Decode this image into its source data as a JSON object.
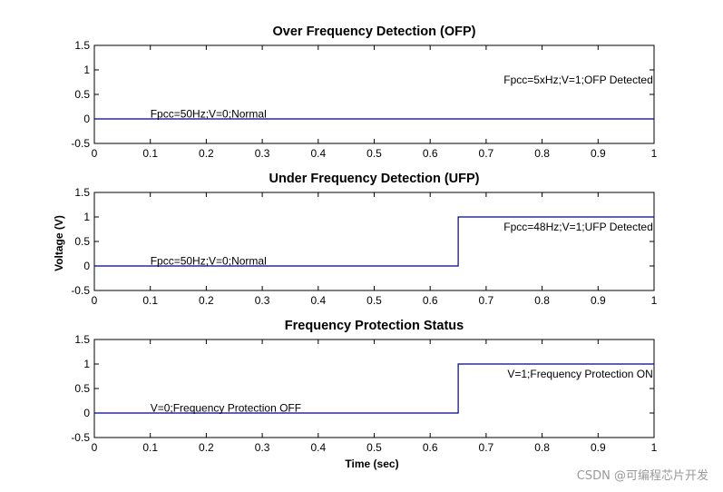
{
  "xlabel": "Time (sec)",
  "ylabel": "Voltage (V)",
  "watermark": "CSDN @可编程芯片开发",
  "chart_data": [
    {
      "type": "line",
      "title": "Over Frequency Detection (OFP)",
      "xlim": [
        0,
        1
      ],
      "ylim": [
        -0.5,
        1.5
      ],
      "xticks": [
        0,
        0.1,
        0.2,
        0.3,
        0.4,
        0.5,
        0.6,
        0.7,
        0.8,
        0.9,
        1
      ],
      "xtick_labels": [
        "0",
        "0.1",
        "0.2",
        "0.3",
        "0.4",
        "0.5",
        "0.6",
        "0.7",
        "0.8",
        "0.9",
        "1"
      ],
      "yticks": [
        -0.5,
        0,
        0.5,
        1,
        1.5
      ],
      "ytick_labels": [
        "-0.5",
        "0",
        "0.5",
        "1",
        "1.5"
      ],
      "series": [
        {
          "color": "#00008b",
          "x": [
            0,
            1
          ],
          "y": [
            0,
            0
          ]
        }
      ],
      "annotations": [
        {
          "text": "Fpcc=50Hz;V=0;Normal",
          "x": 0.1,
          "y": 0.1,
          "anchor": "start"
        },
        {
          "text": "Fpcc=5xHz;V=1;OFP Detected",
          "x": 0.998,
          "y": 0.8,
          "anchor": "end"
        }
      ]
    },
    {
      "type": "line",
      "title": "Under Frequency Detection (UFP)",
      "xlim": [
        0,
        1
      ],
      "ylim": [
        -0.5,
        1.5
      ],
      "xticks": [
        0,
        0.1,
        0.2,
        0.3,
        0.4,
        0.5,
        0.6,
        0.7,
        0.8,
        0.9,
        1
      ],
      "xtick_labels": [
        "0",
        "0.1",
        "0.2",
        "0.3",
        "0.4",
        "0.5",
        "0.6",
        "0.7",
        "0.8",
        "0.9",
        "1"
      ],
      "yticks": [
        -0.5,
        0,
        0.5,
        1,
        1.5
      ],
      "ytick_labels": [
        "-0.5",
        "0",
        "0.5",
        "1",
        "1.5"
      ],
      "series": [
        {
          "color": "#00008b",
          "x": [
            0,
            0.65,
            0.65,
            1
          ],
          "y": [
            0,
            0,
            1,
            1
          ]
        }
      ],
      "annotations": [
        {
          "text": "Fpcc=50Hz;V=0;Normal",
          "x": 0.1,
          "y": 0.1,
          "anchor": "start"
        },
        {
          "text": "Fpcc=48Hz;V=1;UFP Detected",
          "x": 0.998,
          "y": 0.8,
          "anchor": "end"
        }
      ]
    },
    {
      "type": "line",
      "title": "Frequency Protection Status",
      "xlim": [
        0,
        1
      ],
      "ylim": [
        -0.5,
        1.5
      ],
      "xticks": [
        0,
        0.1,
        0.2,
        0.3,
        0.4,
        0.5,
        0.6,
        0.7,
        0.8,
        0.9,
        1
      ],
      "xtick_labels": [
        "0",
        "0.1",
        "0.2",
        "0.3",
        "0.4",
        "0.5",
        "0.6",
        "0.7",
        "0.8",
        "0.9",
        "1"
      ],
      "yticks": [
        -0.5,
        0,
        0.5,
        1,
        1.5
      ],
      "ytick_labels": [
        "-0.5",
        "0",
        "0.5",
        "1",
        "1.5"
      ],
      "series": [
        {
          "color": "#00008b",
          "x": [
            0,
            0.65,
            0.65,
            1
          ],
          "y": [
            0,
            0,
            1,
            1
          ]
        }
      ],
      "annotations": [
        {
          "text": "V=0;Frequency Protection OFF",
          "x": 0.1,
          "y": 0.1,
          "anchor": "start"
        },
        {
          "text": "V=1;Frequency Protection ON",
          "x": 0.998,
          "y": 0.8,
          "anchor": "end"
        }
      ]
    }
  ]
}
